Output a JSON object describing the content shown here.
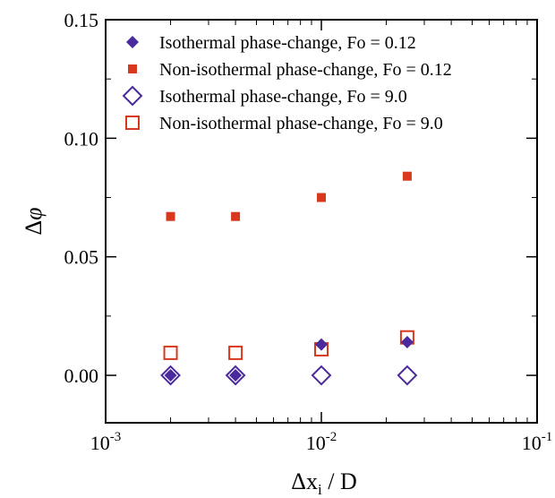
{
  "chart_data": {
    "type": "scatter",
    "title": "",
    "xlabel_main": "Δx",
    "xlabel_sub": "i",
    "xlabel_rest": " / D",
    "ylabel_main": "Δ",
    "ylabel_phi": "φ",
    "xscale": "log",
    "xlim": [
      0.001,
      0.1
    ],
    "ylim": [
      -0.02,
      0.15
    ],
    "xticks": [
      {
        "value": 0.001,
        "base": "10",
        "exp": "-3"
      },
      {
        "value": 0.01,
        "base": "10",
        "exp": "-2"
      },
      {
        "value": 0.1,
        "base": "10",
        "exp": "-1"
      }
    ],
    "yticks": [
      {
        "value": 0.0,
        "label": "0.00"
      },
      {
        "value": 0.05,
        "label": "0.05"
      },
      {
        "value": 0.1,
        "label": "0.10"
      },
      {
        "value": 0.15,
        "label": "0.15"
      }
    ],
    "grid": false,
    "legend_position": "top-right",
    "series": [
      {
        "name": "Isothermal phase-change, Fo = 0.12",
        "marker": "diamond-filled",
        "color": "#4b2a9e",
        "x": [
          0.002,
          0.004,
          0.01,
          0.025
        ],
        "y": [
          0.0,
          0.0,
          0.013,
          0.014
        ]
      },
      {
        "name": "Non-isothermal phase-change, Fo = 0.12",
        "marker": "square-filled",
        "color": "#d8381e",
        "x": [
          0.002,
          0.004,
          0.01,
          0.025
        ],
        "y": [
          0.067,
          0.067,
          0.075,
          0.084
        ]
      },
      {
        "name": "Isothermal phase-change, Fo = 9.0",
        "marker": "diamond-open",
        "color": "#4b2a9e",
        "x": [
          0.002,
          0.004,
          0.01,
          0.025
        ],
        "y": [
          0.0,
          0.0,
          0.0,
          0.0
        ]
      },
      {
        "name": "Non-isothermal phase-change, Fo = 9.0",
        "marker": "square-open",
        "color": "#d8381e",
        "x": [
          0.002,
          0.004,
          0.01,
          0.025
        ],
        "y": [
          0.0095,
          0.0095,
          0.011,
          0.016
        ]
      }
    ]
  }
}
